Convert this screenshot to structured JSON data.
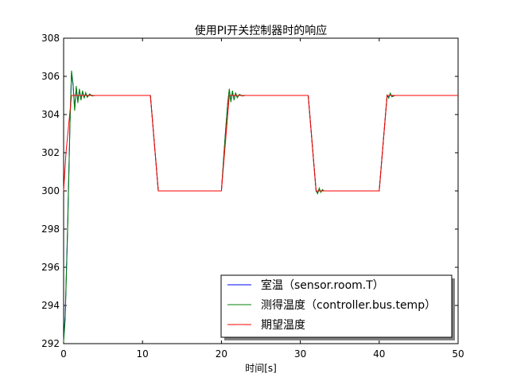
{
  "chart_data": {
    "type": "line",
    "title": "使用PI开关控制器时的响应",
    "xlabel": "时间[s]",
    "ylabel": "",
    "xlim": [
      0,
      50
    ],
    "ylim": [
      292,
      308
    ],
    "xticks": [
      0,
      10,
      20,
      30,
      40,
      50
    ],
    "yticks": [
      292,
      294,
      296,
      298,
      300,
      302,
      304,
      306,
      308
    ],
    "grid": false,
    "legend_position": "bottom-right",
    "series": [
      {
        "name": "室温（sensor.room.T）",
        "color": "#0000ff",
        "x": [
          0,
          0.2,
          0.5,
          0.8,
          1.0,
          1.2,
          1.4,
          1.6,
          1.8,
          2.0,
          2.2,
          2.4,
          2.6,
          2.8,
          3.0,
          3.3,
          3.6,
          4.0,
          5,
          6,
          7,
          8,
          9,
          10,
          11,
          12,
          13,
          14,
          15,
          16,
          17,
          18,
          19,
          20,
          20.5,
          20.8,
          21.0,
          21.2,
          21.4,
          21.6,
          21.8,
          22.0,
          22.3,
          22.6,
          23.0,
          24,
          25,
          26,
          27,
          28,
          29,
          30,
          31,
          32,
          32.2,
          32.4,
          32.6,
          32.8,
          33.0,
          34,
          35,
          36,
          37,
          38,
          39,
          40,
          41,
          41.2,
          41.4,
          41.6,
          42,
          43,
          44,
          45,
          46,
          47,
          48,
          49,
          50
        ],
        "values": [
          292.2,
          293.5,
          298.0,
          303.5,
          306.2,
          305.5,
          304.3,
          305.4,
          304.7,
          305.3,
          304.8,
          305.2,
          304.9,
          305.1,
          304.95,
          305.05,
          305.0,
          305.0,
          305,
          305,
          305,
          305,
          305,
          305,
          305,
          300,
          300,
          300,
          300,
          300,
          300,
          300,
          300,
          300,
          303.0,
          304.6,
          305.3,
          304.7,
          305.2,
          304.8,
          305.1,
          304.9,
          305.05,
          304.98,
          305.0,
          305,
          305,
          305,
          305,
          305,
          305,
          305,
          305,
          300,
          299.9,
          300.1,
          299.95,
          300.05,
          300.0,
          300,
          300,
          300,
          300,
          300,
          300,
          300,
          305,
          304.9,
          305.1,
          304.95,
          305.0,
          305,
          305,
          305,
          305,
          305,
          305,
          305,
          305
        ]
      },
      {
        "name": "测得温度（controller.bus.temp）",
        "color": "#008000",
        "x": [
          0,
          0.2,
          0.5,
          0.8,
          1.0,
          1.2,
          1.4,
          1.6,
          1.8,
          2.0,
          2.2,
          2.4,
          2.6,
          2.8,
          3.0,
          3.3,
          3.6,
          4.0,
          5,
          6,
          7,
          8,
          9,
          10,
          11,
          12,
          13,
          14,
          15,
          16,
          17,
          18,
          19,
          20,
          20.5,
          20.8,
          21.0,
          21.2,
          21.4,
          21.6,
          21.8,
          22.0,
          22.3,
          22.6,
          23.0,
          24,
          25,
          26,
          27,
          28,
          29,
          30,
          31,
          32,
          32.2,
          32.4,
          32.6,
          32.8,
          33.0,
          34,
          35,
          36,
          37,
          38,
          39,
          40,
          41,
          41.2,
          41.4,
          41.6,
          42,
          43,
          44,
          45,
          46,
          47,
          48,
          49,
          50
        ],
        "values": [
          292.1,
          293.3,
          297.8,
          303.4,
          306.3,
          305.6,
          304.2,
          305.5,
          304.6,
          305.35,
          304.75,
          305.25,
          304.85,
          305.15,
          304.9,
          305.08,
          304.97,
          305.0,
          305,
          305,
          305,
          305,
          305,
          305,
          305,
          300,
          300,
          300,
          300,
          300,
          300,
          300,
          300,
          300,
          303.0,
          304.6,
          305.35,
          304.65,
          305.25,
          304.75,
          305.15,
          304.88,
          305.06,
          304.97,
          305.0,
          305,
          305,
          305,
          305,
          305,
          305,
          305,
          305,
          300,
          299.85,
          300.15,
          299.92,
          300.07,
          300.0,
          300,
          300,
          300,
          300,
          300,
          300,
          300,
          305,
          304.85,
          305.12,
          304.93,
          305.0,
          305,
          305,
          305,
          305,
          305,
          305,
          305,
          305
        ]
      },
      {
        "name": "期望温度",
        "color": "#ff0000",
        "x": [
          0,
          0.3,
          1.0,
          11,
          12,
          20,
          21,
          31,
          32,
          40,
          41,
          50
        ],
        "values": [
          300,
          302,
          305,
          305,
          300,
          300,
          305,
          305,
          300,
          300,
          305,
          305
        ]
      }
    ]
  }
}
